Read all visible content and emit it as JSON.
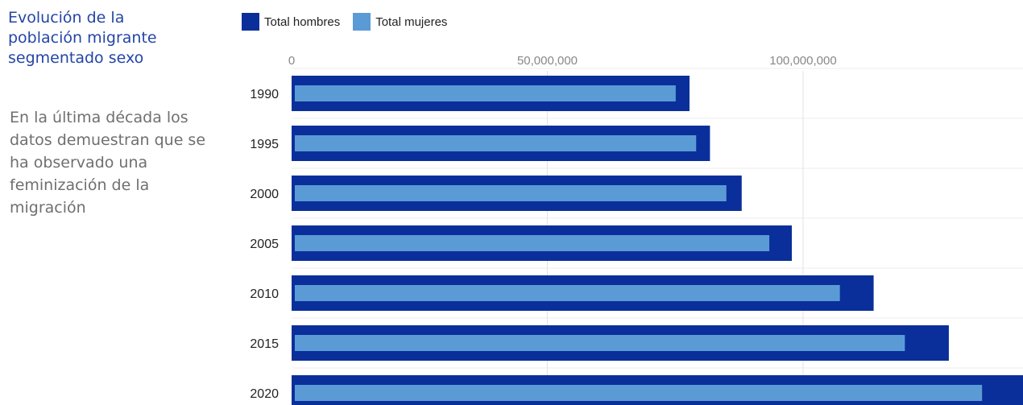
{
  "side": {
    "title": "Evolución de la población migrante segmentado sexo",
    "text": "En la última década los datos demuestran que se ha observado una feminización de la migración",
    "title_color": "#2445a6",
    "text_color": "#6f6f6f"
  },
  "chart_data": {
    "type": "bar",
    "orientation": "horizontal",
    "categories": [
      "1990",
      "1995",
      "2000",
      "2005",
      "2010",
      "2015",
      "2020"
    ],
    "series": [
      {
        "name": "Total hombres",
        "color": "#0a2f9b",
        "values": [
          77800000,
          81800000,
          88000000,
          97800000,
          113800000,
          128500000,
          146000000
        ]
      },
      {
        "name": "Total mujeres",
        "color": "#5b9bd5",
        "values": [
          75100000,
          79100000,
          85000000,
          93400000,
          107200000,
          119900000,
          135000000
        ]
      }
    ],
    "xticks": [
      0,
      50000000,
      100000000
    ],
    "xtick_labels": [
      "0",
      "50,000,000",
      "100,000,000"
    ],
    "xlim": [
      0,
      143000000
    ],
    "grid": true,
    "legend_position": "top-left"
  }
}
